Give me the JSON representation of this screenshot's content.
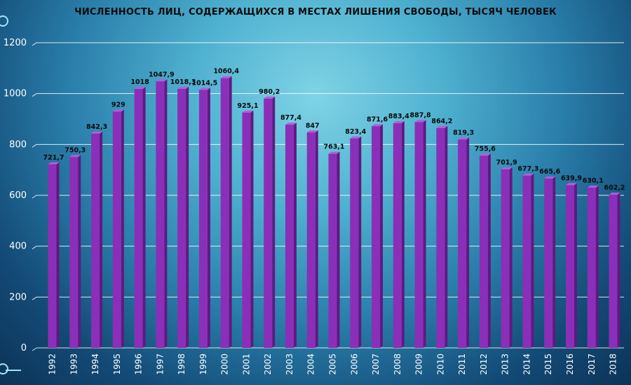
{
  "chart_data": {
    "type": "bar",
    "title": "ЧИСЛЕННОСТЬ ЛИЦ, СОДЕРЖАЩИХСЯ В МЕСТАХ ЛИШЕНИЯ СВОБОДЫ, ТЫСЯЧ ЧЕЛОВЕК",
    "xlabel": "",
    "ylabel": "",
    "ylim": [
      0,
      1200
    ],
    "yticks": [
      0,
      200,
      400,
      600,
      800,
      1000,
      1200
    ],
    "grid": true,
    "categories": [
      "1992",
      "1993",
      "1994",
      "1995",
      "1996",
      "1997",
      "1998",
      "1999",
      "2000",
      "2001",
      "2002",
      "2003",
      "2004",
      "2005",
      "2006",
      "2007",
      "2008",
      "2009",
      "2010",
      "2011",
      "2012",
      "2013",
      "2014",
      "2015",
      "2016",
      "2017",
      "2018"
    ],
    "values": [
      721.7,
      750.3,
      842.3,
      929,
      1018,
      1047.9,
      1018.3,
      1014.5,
      1060.4,
      925.1,
      980.2,
      877.4,
      847,
      763.1,
      823.4,
      871.6,
      883.4,
      887.8,
      864.2,
      819.3,
      755.6,
      701.9,
      677.3,
      665.6,
      639.9,
      630.1,
      602.2
    ],
    "labels": [
      "721,7",
      "750,3",
      "842,3",
      "929",
      "1018",
      "1047,9",
      "1018,3",
      "1014,5",
      "1060,4",
      "925,1",
      "980,2",
      "877,4",
      "847",
      "763,1",
      "823,4",
      "871,6",
      "883,4",
      "887,8",
      "864,2",
      "819,3",
      "755,6",
      "701,9",
      "677,3",
      "665,6",
      "639,9",
      "630,1",
      "602,2"
    ],
    "colors": {
      "bar_front": "#8b2fb8",
      "bar_side": "#5e1a82",
      "bar_top": "#b35fd8",
      "grid": "#ffffff"
    }
  }
}
